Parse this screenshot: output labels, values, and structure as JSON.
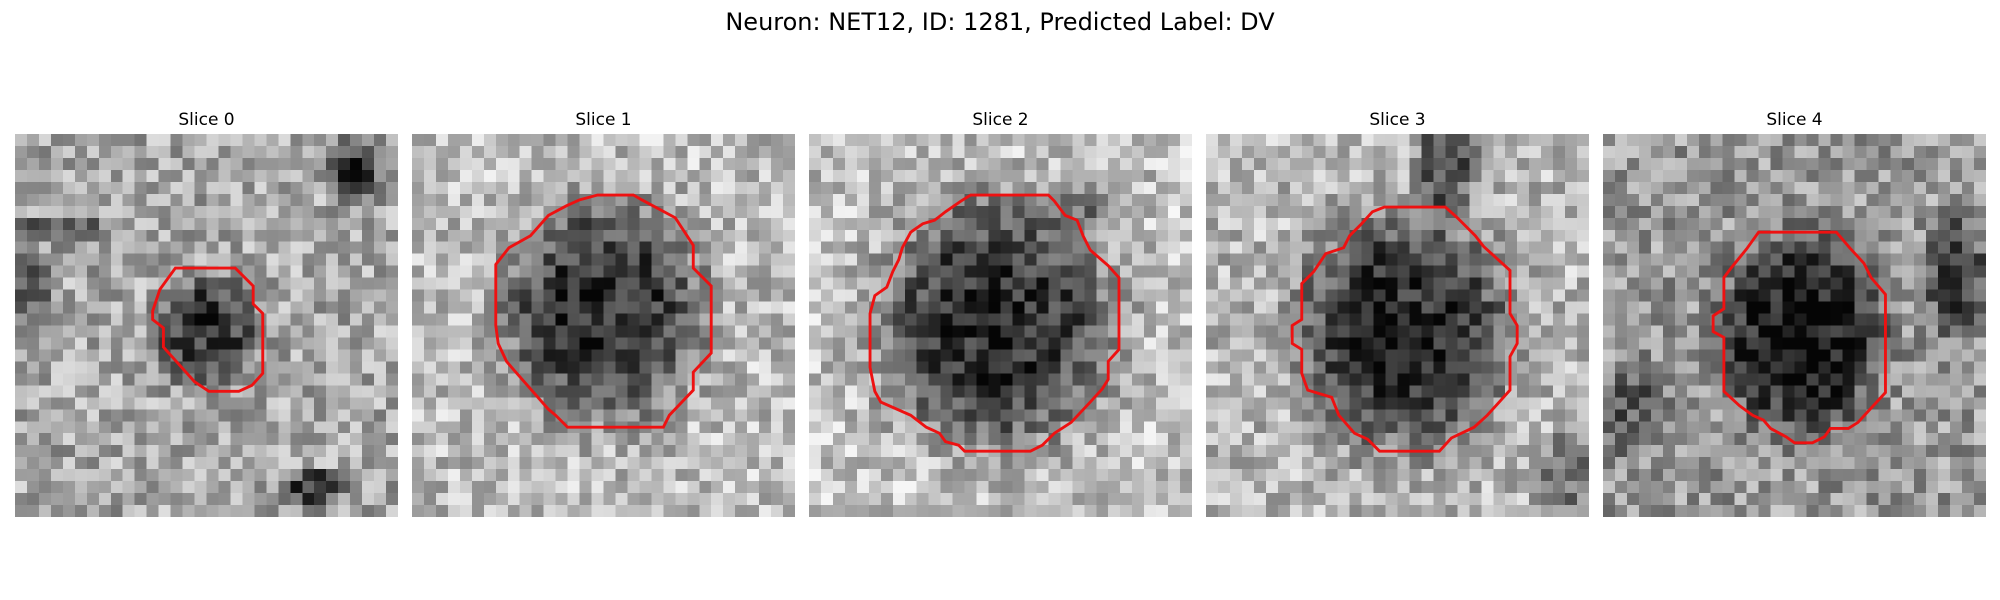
{
  "figure": {
    "title": "Neuron: NET12, ID: 1281, Predicted Label: DV"
  },
  "slices": [
    {
      "title": "Slice 0"
    },
    {
      "title": "Slice 1"
    },
    {
      "title": "Slice 2"
    },
    {
      "title": "Slice 3"
    },
    {
      "title": "Slice 4"
    }
  ],
  "colors": {
    "contour": "#ee1111",
    "background": "#ffffff",
    "text": "#000000"
  }
}
